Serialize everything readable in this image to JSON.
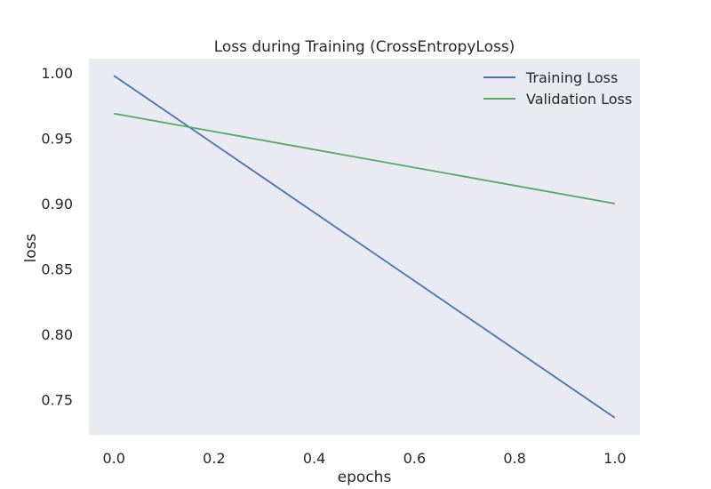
{
  "chart_data": {
    "type": "line",
    "title": "Loss during Training (CrossEntropyLoss)",
    "xlabel": "epochs",
    "ylabel": "loss",
    "xlim": [
      -0.05,
      1.05
    ],
    "ylim": [
      0.723,
      1.011
    ],
    "xticks": [
      "0.0",
      "0.2",
      "0.4",
      "0.6",
      "0.8",
      "1.0"
    ],
    "yticks": [
      "0.75",
      "0.80",
      "0.85",
      "0.90",
      "0.95",
      "1.00"
    ],
    "grid": false,
    "legend_position": "top-right",
    "background_color": "#eaeaf2",
    "series": [
      {
        "name": "Training Loss",
        "color": "#4c72b0",
        "x": [
          0.0,
          1.0
        ],
        "y": [
          0.998,
          0.736
        ]
      },
      {
        "name": "Validation Loss",
        "color": "#55a868",
        "x": [
          0.0,
          1.0
        ],
        "y": [
          0.969,
          0.9
        ]
      }
    ]
  }
}
